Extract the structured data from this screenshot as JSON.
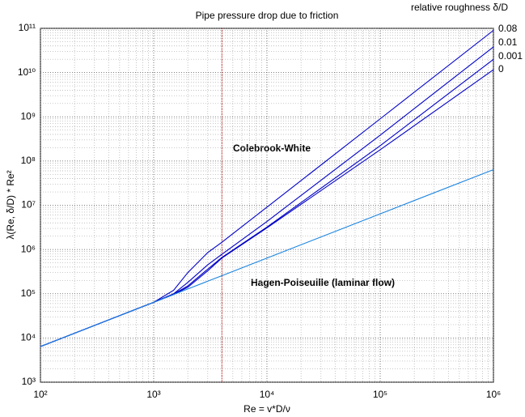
{
  "chart_data": {
    "type": "line",
    "title": "Pipe pressure drop due to friction",
    "legend_title": "relative roughness δ/D",
    "xlabel": "Re = v*D/ν",
    "ylabel": "λ(Re, δ/D) * Re²",
    "x": [
      100,
      1000,
      1500,
      2000,
      3000,
      4000,
      10000,
      100000,
      1000000
    ],
    "series": [
      {
        "name": "0.08",
        "color": "#0000c8",
        "values": [
          6400,
          64000,
          120000,
          300000,
          850000,
          1460000,
          9050000,
          900000000,
          90000000000
        ]
      },
      {
        "name": "0.01",
        "color": "#0000c8",
        "values": [
          6400,
          64000,
          100000,
          180000,
          450000,
          780000,
          4300000,
          385000000,
          38000000000
        ]
      },
      {
        "name": "0.001",
        "color": "#0000c8",
        "values": [
          6400,
          64000,
          98000,
          150000,
          360000,
          660000,
          3210000,
          222000000,
          19900000000
        ]
      },
      {
        "name": "0",
        "color": "#0000c8",
        "values": [
          6400,
          64000,
          96000,
          140000,
          330000,
          640000,
          3090000,
          180000000,
          11600000000
        ]
      },
      {
        "name": "Hagen-Poiseuille (laminar flow)",
        "color": "#1a84e0",
        "values": [
          6400,
          64000,
          96000,
          128000,
          192000,
          256000,
          640000,
          6400000,
          64000000
        ]
      }
    ],
    "annotations": [
      {
        "text": "Colebrook-White",
        "color": "#e00000"
      }
    ],
    "vline": {
      "x": 4000,
      "color": "#c00000"
    },
    "xscale": "log",
    "yscale": "log",
    "xlim": [
      100,
      1000000
    ],
    "ylim": [
      1000,
      100000000000
    ],
    "xticks": [
      {
        "value": 100,
        "label": "10²"
      },
      {
        "value": 1000,
        "label": "10³"
      },
      {
        "value": 10000,
        "label": "10⁴"
      },
      {
        "value": 100000,
        "label": "10⁵"
      },
      {
        "value": 1000000,
        "label": "10⁶"
      }
    ],
    "yticks": [
      {
        "value": 1000,
        "label": "10³"
      },
      {
        "value": 10000,
        "label": "10⁴"
      },
      {
        "value": 100000,
        "label": "10⁵"
      },
      {
        "value": 1000000,
        "label": "10⁶"
      },
      {
        "value": 10000000,
        "label": "10⁷"
      },
      {
        "value": 100000000,
        "label": "10⁸"
      },
      {
        "value": 1000000000,
        "label": "10⁹"
      },
      {
        "value": 10000000000,
        "label": "10¹⁰"
      },
      {
        "value": 100000000000,
        "label": "10¹¹"
      }
    ],
    "grid": true
  }
}
